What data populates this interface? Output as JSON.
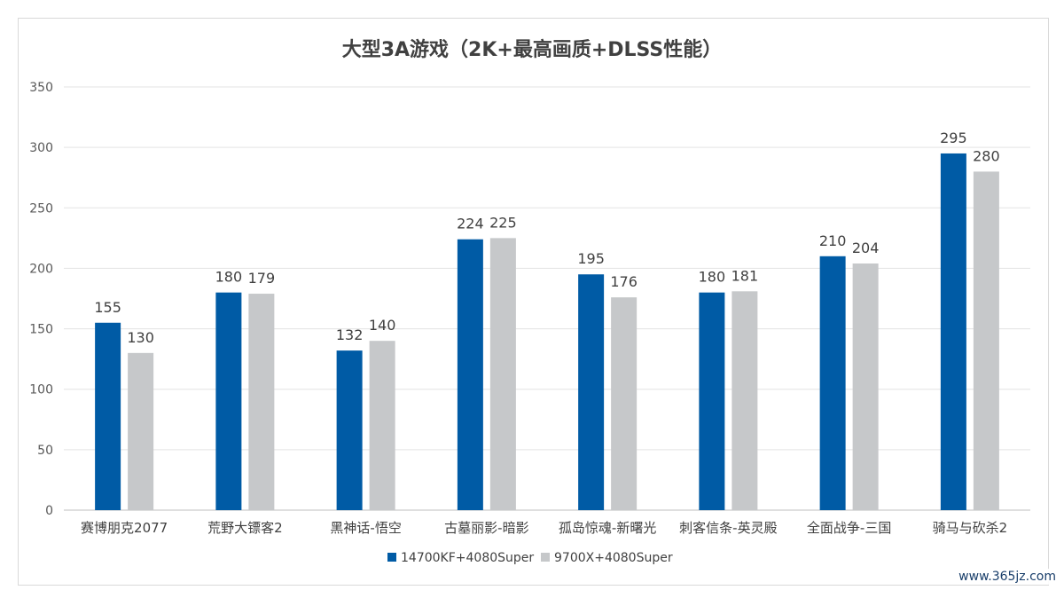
{
  "watermark": "www.365jz.com",
  "chart_data": {
    "type": "bar",
    "title": "大型3A游戏（2K+最高画质+DLSS性能）",
    "xlabel": "",
    "ylabel": "",
    "ylim": [
      0,
      350
    ],
    "yticks": [
      0,
      50,
      100,
      150,
      200,
      250,
      300,
      350
    ],
    "grid": true,
    "legend_position": "bottom",
    "categories": [
      "赛博朋克2077",
      "荒野大镖客2",
      "黑神话-悟空",
      "古墓丽影-暗影",
      "孤岛惊魂-新曙光",
      "刺客信条-英灵殿",
      "全面战争-三国",
      "骑马与砍杀2"
    ],
    "series": [
      {
        "name": "14700KF+4080Super",
        "color": "#005ba5",
        "values": [
          155,
          180,
          132,
          224,
          195,
          180,
          210,
          295
        ]
      },
      {
        "name": "9700X+4080Super",
        "color": "#c6c8ca",
        "values": [
          130,
          179,
          140,
          225,
          176,
          181,
          204,
          280
        ]
      }
    ]
  }
}
